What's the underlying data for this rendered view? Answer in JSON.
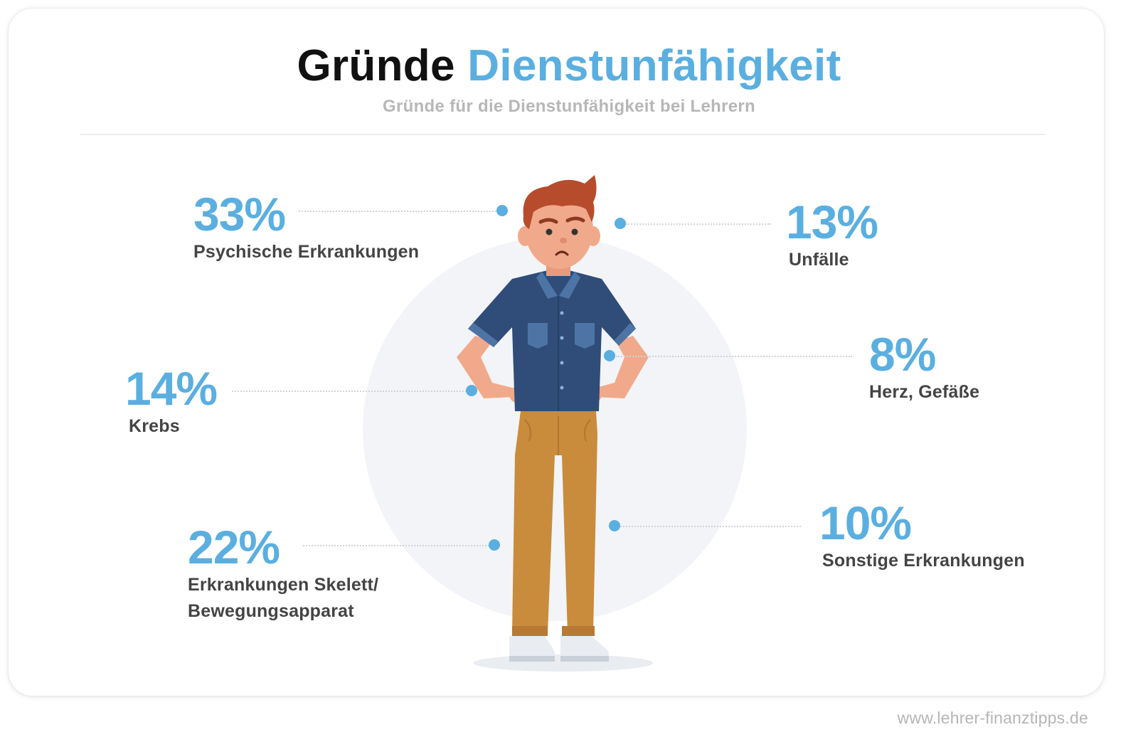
{
  "header": {
    "title_part1": "Gründe",
    "title_part2": "Dienstunfähigkeit",
    "subtitle": "Gründe für die Dienstunfähigkeit bei Lehrern"
  },
  "colors": {
    "accent": "#5aafe0",
    "label": "#444444",
    "subtitle": "#b7b7b7",
    "circle": "#f2f4f7"
  },
  "stats": [
    {
      "value": "33%",
      "label": "Psychische Erkrankungen"
    },
    {
      "value": "13%",
      "label": "Unfälle"
    },
    {
      "value": "14%",
      "label": "Krebs"
    },
    {
      "value": "8%",
      "label": "Herz, Gefäße"
    },
    {
      "value": "22%",
      "label": "Erkrankungen Skelett/ Bewegungsapparat"
    },
    {
      "value": "10%",
      "label": "Sonstige Erkrankungen"
    }
  ],
  "footer": {
    "url": "www.lehrer-finanztipps.de"
  }
}
